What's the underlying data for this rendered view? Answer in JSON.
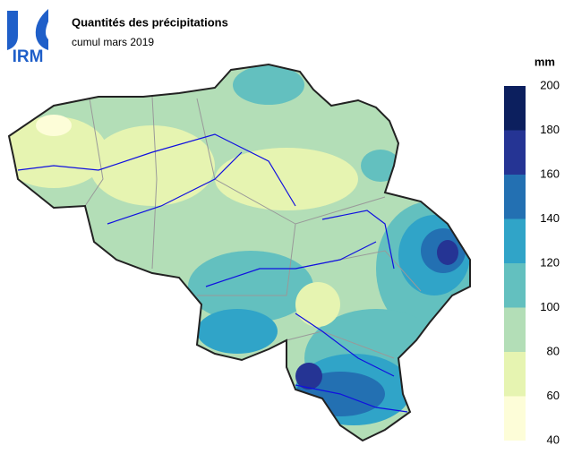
{
  "logo": "IRM",
  "header": {
    "title": "Quantités des précipitations",
    "subtitle": "cumul mars 2019"
  },
  "legend": {
    "unit": "mm",
    "ticks": [
      40,
      60,
      80,
      100,
      120,
      140,
      160,
      180,
      200
    ],
    "colors": [
      "#fdfdd8",
      "#e6f4b1",
      "#b3deb7",
      "#63c0bf",
      "#30a4c8",
      "#2370b2",
      "#253494",
      "#0c1f5e"
    ]
  }
}
